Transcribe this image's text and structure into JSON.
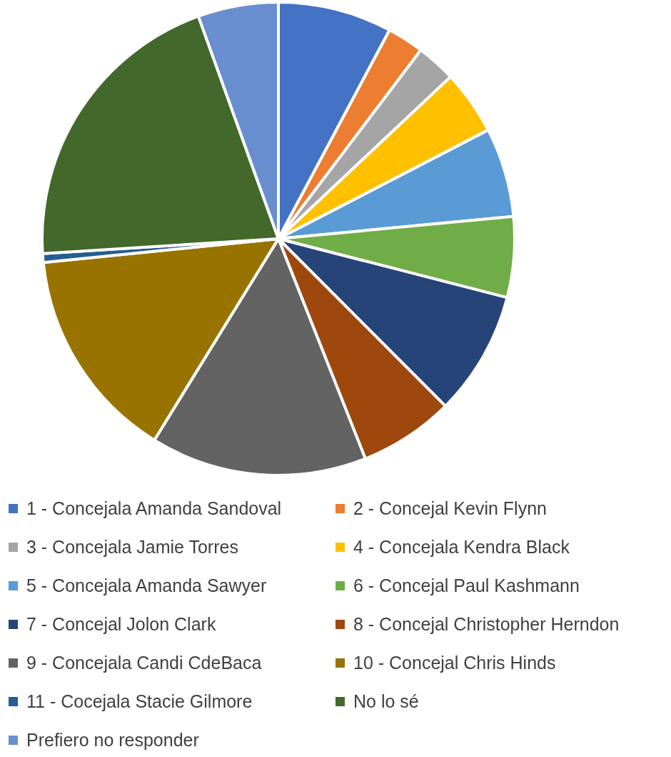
{
  "chart_data": {
    "type": "pie",
    "categories": [
      "1 - Concejala Amanda Sandoval",
      "2 - Concejal Kevin Flynn",
      "3 - Concejala Jamie Torres",
      "4 - Concejala Kendra Black",
      "5 - Concejala Amanda Sawyer",
      "6 - Concejal Paul Kashmann",
      "7 - Concejal Jolon Clark",
      "8 - Concejal Christopher Herndon",
      "9 - Concejala Candi CdeBaca",
      "10 - Concejal Chris Hinds",
      "11 - Cocejala Stacie Gilmore",
      "No lo sé",
      "Prefiero no responder"
    ],
    "values": [
      7.8,
      2.5,
      2.7,
      4.4,
      6.1,
      5.5,
      8.5,
      6.5,
      14.8,
      14.6,
      0.6,
      20.5,
      5.5
    ],
    "colors": [
      "#4472c4",
      "#ed7d31",
      "#a5a5a5",
      "#ffc000",
      "#5b9bd5",
      "#70ad47",
      "#264478",
      "#9e480e",
      "#636363",
      "#997300",
      "#255e91",
      "#43682b",
      "#698ed0"
    ],
    "legend": "bottom"
  }
}
